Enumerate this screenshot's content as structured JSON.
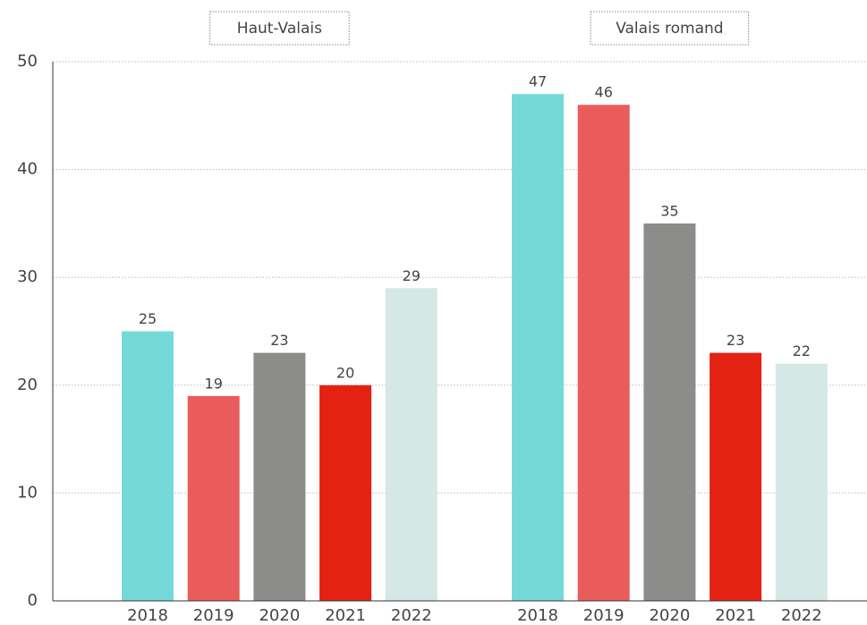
{
  "chart_data": {
    "type": "bar",
    "ylim": [
      0,
      50
    ],
    "yticks": [
      0,
      10,
      20,
      30,
      40,
      50
    ],
    "grid": true,
    "colors": [
      "#76d9d9",
      "#ea5c5c",
      "#8c8c8a",
      "#e32213",
      "#d5e8e6"
    ],
    "panels": [
      {
        "title": "Haut-Valais",
        "categories": [
          "2018",
          "2019",
          "2020",
          "2021",
          "2022"
        ],
        "values": [
          25,
          19,
          23,
          20,
          29
        ]
      },
      {
        "title": "Valais romand",
        "categories": [
          "2018",
          "2019",
          "2020",
          "2021",
          "2022"
        ],
        "values": [
          47,
          46,
          35,
          23,
          22
        ]
      }
    ]
  }
}
